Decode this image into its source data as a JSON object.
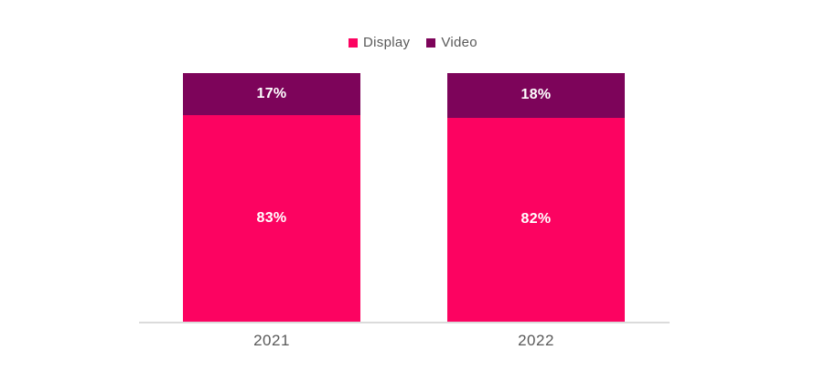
{
  "chart_data": {
    "type": "bar",
    "stacked": true,
    "orientation": "vertical",
    "title": "",
    "xlabel": "",
    "ylabel": "",
    "ylim": [
      0,
      100
    ],
    "grid": false,
    "legend_position": "top-center",
    "value_suffix": "%",
    "categories": [
      "2021",
      "2022"
    ],
    "series": [
      {
        "name": "Display",
        "color": "#fc0361",
        "values": [
          83,
          82
        ]
      },
      {
        "name": "Video",
        "color": "#7d045a",
        "values": [
          17,
          18
        ]
      }
    ],
    "label_text_color": "#ffffff",
    "axis_line_color": "#dbdbdb",
    "tick_text_color": "#595959"
  }
}
